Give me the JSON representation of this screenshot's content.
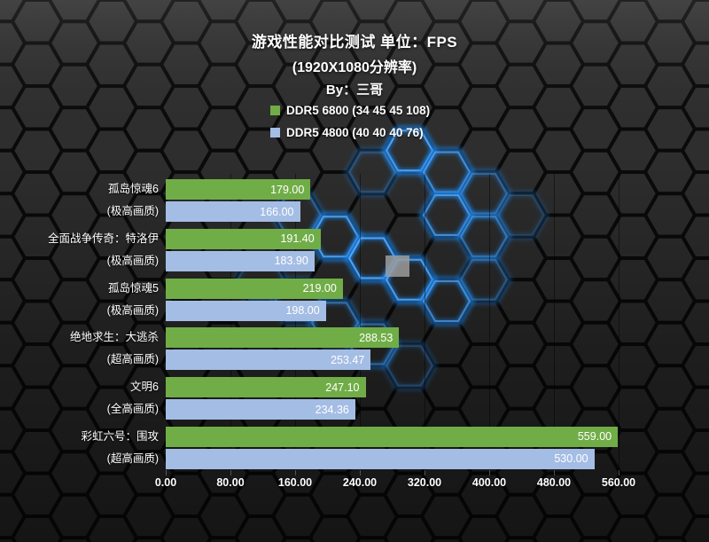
{
  "title": {
    "line1": "游戏性能对比测试 单位：FPS",
    "line2": "(1920X1080分辨率)",
    "line3": "By：三哥"
  },
  "legend": {
    "items": [
      {
        "label": "DDR5 6800 (34 45 45 108)",
        "color": "#70ad47"
      },
      {
        "label": "DDR5 4800 (40 40 40 76)",
        "color": "#a4bde4"
      }
    ]
  },
  "colors": {
    "series1": "#70ad47",
    "series2": "#a4bde4",
    "text": "#ffffff",
    "glow_blue": "#2e8be6"
  },
  "chart_data": {
    "type": "bar",
    "orientation": "horizontal",
    "title": "游戏性能对比测试 单位：FPS",
    "subtitle": "(1920X1080分辨率)",
    "byline": "By：三哥",
    "unit": "FPS",
    "categories": [
      {
        "name": "孤岛惊魂6",
        "setting": "(极高画质)"
      },
      {
        "name": "全面战争传奇：特洛伊",
        "setting": "(极高画质)"
      },
      {
        "name": "孤岛惊魂5",
        "setting": "(极高画质)"
      },
      {
        "name": "绝地求生：大逃杀",
        "setting": "(超高画质)"
      },
      {
        "name": "文明6",
        "setting": "(全高画质)"
      },
      {
        "name": "彩虹六号：围攻",
        "setting": "(超高画质)"
      }
    ],
    "series": [
      {
        "name": "DDR5 6800 (34 45 45 108)",
        "color": "#70ad47",
        "values": [
          179.0,
          191.4,
          219.0,
          288.53,
          247.1,
          559.0
        ],
        "labels": [
          "179.00",
          "191.40",
          "219.00",
          "288.53",
          "247.10",
          "559.00"
        ]
      },
      {
        "name": "DDR5 4800 (40 40 40 76)",
        "color": "#a4bde4",
        "values": [
          166.0,
          183.9,
          198.0,
          253.47,
          234.36,
          530.0
        ],
        "labels": [
          "166.00",
          "183.90",
          "198.00",
          "253.47",
          "234.36",
          "530.00"
        ]
      }
    ],
    "x_ticks": [
      "0.00",
      "80.00",
      "160.00",
      "240.00",
      "320.00",
      "400.00",
      "480.00",
      "560.00"
    ],
    "xlim": [
      0,
      560
    ],
    "grid": true,
    "legend_position": "top-center"
  }
}
